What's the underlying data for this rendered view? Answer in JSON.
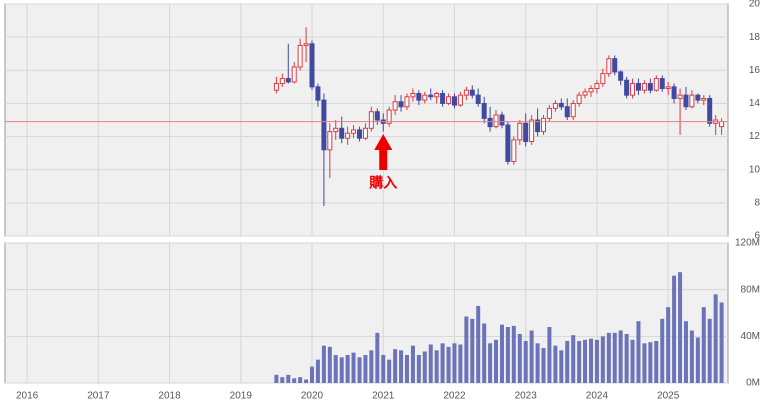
{
  "chart_data": [
    {
      "type": "candlestick",
      "x": [
        2019.5,
        2019.583,
        2019.667,
        2019.75,
        2019.833,
        2019.917,
        2020,
        2020.083,
        2020.167,
        2020.25,
        2020.333,
        2020.417,
        2020.5,
        2020.583,
        2020.667,
        2020.75,
        2020.833,
        2020.917,
        2021,
        2021.083,
        2021.167,
        2021.25,
        2021.333,
        2021.417,
        2021.5,
        2021.583,
        2021.667,
        2021.75,
        2021.833,
        2021.917,
        2022,
        2022.083,
        2022.167,
        2022.25,
        2022.333,
        2022.417,
        2022.5,
        2022.583,
        2022.667,
        2022.75,
        2022.833,
        2022.917,
        2023,
        2023.083,
        2023.167,
        2023.25,
        2023.333,
        2023.417,
        2023.5,
        2023.583,
        2023.667,
        2023.75,
        2023.833,
        2023.917,
        2024,
        2024.083,
        2024.167,
        2024.25,
        2024.333,
        2024.417,
        2024.5,
        2024.583,
        2024.667,
        2024.75,
        2024.833,
        2024.917,
        2025,
        2025.083,
        2025.167,
        2025.25,
        2025.333,
        2025.417,
        2025.5,
        2025.583,
        2025.667,
        2025.75
      ],
      "open": [
        14.8,
        15.2,
        15.5,
        15.3,
        16.2,
        17.5,
        17.6,
        15.0,
        14.2,
        11.2,
        12.3,
        12.5,
        11.9,
        12.2,
        12.4,
        11.9,
        12.5,
        13.5,
        13.0,
        12.8,
        13.6,
        14.1,
        13.8,
        14.4,
        14.6,
        14.2,
        14.5,
        14.4,
        14.6,
        14.0,
        14.4,
        13.9,
        14.5,
        14.8,
        14.5,
        14.0,
        13.1,
        12.6,
        13.3,
        12.7,
        10.5,
        11.8,
        12.8,
        11.7,
        13.0,
        12.3,
        13.1,
        13.7,
        14.0,
        13.8,
        13.2,
        14.0,
        14.5,
        14.7,
        14.9,
        15.2,
        15.8,
        16.7,
        15.9,
        15.4,
        14.5,
        15.2,
        14.8,
        15.2,
        14.8,
        15.5,
        14.9,
        15.0,
        14.3,
        14.5,
        13.8,
        14.5,
        14.2,
        14.3,
        12.8,
        12.6
      ],
      "high": [
        15.6,
        15.8,
        17.6,
        16.5,
        17.9,
        18.6,
        17.8,
        15.2,
        14.6,
        12.8,
        13.0,
        13.2,
        12.6,
        12.7,
        12.6,
        12.8,
        13.8,
        13.7,
        13.4,
        13.8,
        14.5,
        14.5,
        14.6,
        14.9,
        14.8,
        14.7,
        14.9,
        14.7,
        14.8,
        14.6,
        14.6,
        14.7,
        15.0,
        15.1,
        14.9,
        14.4,
        13.8,
        13.6,
        13.5,
        12.9,
        12.0,
        13.0,
        13.4,
        13.3,
        13.7,
        13.3,
        13.9,
        14.2,
        14.3,
        14.3,
        14.2,
        14.7,
        14.9,
        15.1,
        15.4,
        16.1,
        16.9,
        16.9,
        16.0,
        15.6,
        15.5,
        15.5,
        15.4,
        15.5,
        15.7,
        15.7,
        15.3,
        15.2,
        14.9,
        15.0,
        14.8,
        14.6,
        14.5,
        14.5,
        13.3,
        13.1
      ],
      "low": [
        14.6,
        15.0,
        15.2,
        15.2,
        16.0,
        16.5,
        14.8,
        13.8,
        7.8,
        9.5,
        11.8,
        11.6,
        11.5,
        11.9,
        11.7,
        11.8,
        12.3,
        12.7,
        12.3,
        12.6,
        13.3,
        13.5,
        13.6,
        14.1,
        13.9,
        14.0,
        14.2,
        14.0,
        13.8,
        13.9,
        13.7,
        13.8,
        14.2,
        14.3,
        13.8,
        12.8,
        12.3,
        12.5,
        12.5,
        10.3,
        10.3,
        11.5,
        11.4,
        11.5,
        12.0,
        12.1,
        12.9,
        13.5,
        13.6,
        13.0,
        13.0,
        13.8,
        14.3,
        14.4,
        14.6,
        15.0,
        15.6,
        15.7,
        15.1,
        14.3,
        14.3,
        14.5,
        14.6,
        14.6,
        14.7,
        14.7,
        14.5,
        14.0,
        12.1,
        13.6,
        13.7,
        14.0,
        13.9,
        12.6,
        12.1,
        12.1
      ],
      "close": [
        15.2,
        15.5,
        15.3,
        16.2,
        17.5,
        17.6,
        15.0,
        14.2,
        11.2,
        12.3,
        12.5,
        11.9,
        12.2,
        12.4,
        11.9,
        12.5,
        13.5,
        13.0,
        12.8,
        13.6,
        14.1,
        13.8,
        14.4,
        14.6,
        14.2,
        14.5,
        14.4,
        14.6,
        14.0,
        14.4,
        13.9,
        14.5,
        14.8,
        14.5,
        14.0,
        13.1,
        12.6,
        13.3,
        12.7,
        10.5,
        11.8,
        12.8,
        11.7,
        13.0,
        12.3,
        13.1,
        13.7,
        14.0,
        13.8,
        13.2,
        14.0,
        14.5,
        14.7,
        14.9,
        15.2,
        15.8,
        16.7,
        15.9,
        15.4,
        14.5,
        15.2,
        14.8,
        15.2,
        14.8,
        15.5,
        14.9,
        15.0,
        14.3,
        14.5,
        13.8,
        14.5,
        14.2,
        14.3,
        12.8,
        13.0,
        12.9
      ],
      "up_color": "#e0393e",
      "down_color": "#3f4aa0",
      "xlim": [
        2015.69,
        2025.84
      ],
      "xticks": [
        2016,
        2017,
        2018,
        2019,
        2020,
        2021,
        2022,
        2023,
        2024,
        2025
      ],
      "ylim": [
        6,
        20
      ],
      "yticks": [
        6,
        8,
        10,
        12,
        14,
        16,
        18,
        20
      ],
      "grid": true,
      "reference_line": {
        "value": 12.9,
        "color": "#e88080"
      },
      "annotation": {
        "text": "購入",
        "x": 2021,
        "color": "#ee0000"
      }
    },
    {
      "type": "bar",
      "x": [
        2019.5,
        2019.583,
        2019.667,
        2019.75,
        2019.833,
        2019.917,
        2020,
        2020.083,
        2020.167,
        2020.25,
        2020.333,
        2020.417,
        2020.5,
        2020.583,
        2020.667,
        2020.75,
        2020.833,
        2020.917,
        2021,
        2021.083,
        2021.167,
        2021.25,
        2021.333,
        2021.417,
        2021.5,
        2021.583,
        2021.667,
        2021.75,
        2021.833,
        2021.917,
        2022,
        2022.083,
        2022.167,
        2022.25,
        2022.333,
        2022.417,
        2022.5,
        2022.583,
        2022.667,
        2022.75,
        2022.833,
        2022.917,
        2023,
        2023.083,
        2023.167,
        2023.25,
        2023.333,
        2023.417,
        2023.5,
        2023.583,
        2023.667,
        2023.75,
        2023.833,
        2023.917,
        2024,
        2024.083,
        2024.167,
        2024.25,
        2024.333,
        2024.417,
        2024.5,
        2024.583,
        2024.667,
        2024.75,
        2024.833,
        2024.917,
        2025,
        2025.083,
        2025.167,
        2025.25,
        2025.333,
        2025.417,
        2025.5,
        2025.583,
        2025.667,
        2025.75
      ],
      "values": [
        7,
        5,
        7,
        4,
        5,
        3,
        14,
        20,
        32,
        31,
        24,
        22,
        24,
        26,
        22,
        24,
        28,
        43,
        24,
        20,
        29,
        28,
        24,
        32,
        24,
        27,
        33,
        28,
        34,
        31,
        34,
        33,
        57,
        55,
        66,
        51,
        34,
        37,
        50,
        48,
        49,
        42,
        36,
        45,
        34,
        30,
        48,
        32,
        28,
        36,
        41,
        36,
        37,
        38,
        37,
        40,
        43,
        43,
        45,
        42,
        37,
        53,
        34,
        35,
        36,
        55,
        65,
        92,
        95,
        53,
        45,
        39,
        65,
        55,
        76,
        69
      ],
      "color": "#6b74b8",
      "xlim": [
        2015.69,
        2025.84
      ],
      "xticks": [
        2016,
        2017,
        2018,
        2019,
        2020,
        2021,
        2022,
        2023,
        2024,
        2025
      ],
      "ylim": [
        0,
        120
      ],
      "yticks": [
        {
          "value": 0,
          "label": "0M"
        },
        {
          "value": 40,
          "label": "40M"
        },
        {
          "value": 80,
          "label": "80M"
        },
        {
          "value": 120,
          "label": "120M"
        }
      ],
      "grid": true
    }
  ]
}
